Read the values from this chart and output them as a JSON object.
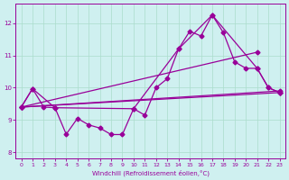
{
  "xlabel": "Windchill (Refroidissement éolien,°C)",
  "background_color": "#cff0f0",
  "grid_color": "#aaddcc",
  "line_color": "#990099",
  "xlim": [
    -0.5,
    23.5
  ],
  "ylim": [
    7.8,
    12.6
  ],
  "xticks": [
    0,
    1,
    2,
    3,
    4,
    5,
    6,
    7,
    8,
    9,
    10,
    11,
    12,
    13,
    14,
    15,
    16,
    17,
    18,
    19,
    20,
    21,
    22,
    23
  ],
  "yticks": [
    8,
    9,
    10,
    11,
    12
  ],
  "marker": "D",
  "marker_size": 2.5,
  "line_width": 0.9,
  "line1_x": [
    0,
    1,
    2,
    3,
    4,
    5,
    6,
    7,
    8,
    9,
    10,
    11,
    12,
    13,
    14,
    15,
    16,
    17,
    18,
    19,
    20,
    21,
    22,
    23
  ],
  "line1_y": [
    9.4,
    9.97,
    9.4,
    9.38,
    8.56,
    9.05,
    8.85,
    8.75,
    8.55,
    8.55,
    9.35,
    9.15,
    10.0,
    10.28,
    11.2,
    11.75,
    11.6,
    12.25,
    11.7,
    10.8,
    10.6,
    10.6,
    10.0,
    9.85
  ],
  "line2_x": [
    0,
    1,
    3,
    10,
    14,
    17,
    21,
    22,
    23
  ],
  "line2_y": [
    9.4,
    9.97,
    9.38,
    9.35,
    11.2,
    12.25,
    10.6,
    10.0,
    9.85
  ],
  "line3_x": [
    0,
    23
  ],
  "line3_y": [
    9.4,
    9.85
  ],
  "line4_x": [
    0,
    23
  ],
  "line4_y": [
    9.4,
    9.9
  ],
  "line5_x": [
    0,
    21
  ],
  "line5_y": [
    9.4,
    11.1
  ]
}
